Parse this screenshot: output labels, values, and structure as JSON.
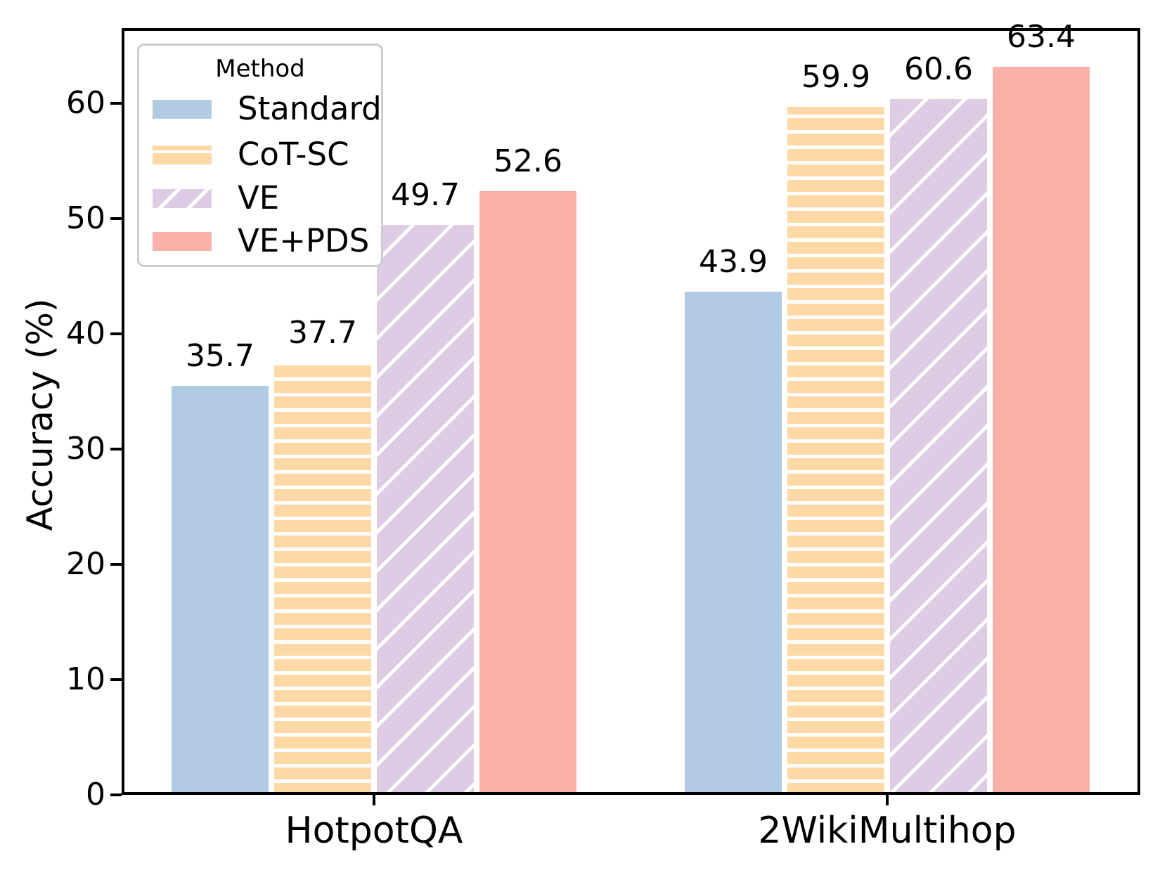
{
  "chart_data": {
    "type": "bar",
    "title": "",
    "xlabel": "",
    "ylabel": "Accuracy (%)",
    "categories": [
      "HotpotQA",
      "2WikiMultihop"
    ],
    "series": [
      {
        "name": "Standard",
        "values": [
          35.7,
          43.9
        ],
        "color": "#b0cbe2",
        "hatch": "backslash"
      },
      {
        "name": "CoT-SC",
        "values": [
          37.7,
          59.9
        ],
        "color": "#fed9a6",
        "hatch": "horiz"
      },
      {
        "name": "VE",
        "values": [
          49.7,
          60.6
        ],
        "color": "#decbe4",
        "hatch": "slash"
      },
      {
        "name": "VE+PDS",
        "values": [
          52.6,
          63.4
        ],
        "color": "#fab1aa",
        "hatch": "none"
      }
    ],
    "bar_value_labels": [
      [
        "35.7",
        "37.7",
        "49.7",
        "52.6"
      ],
      [
        "43.9",
        "59.9",
        "60.6",
        "63.4"
      ]
    ],
    "yticks": [
      0,
      10,
      20,
      30,
      40,
      50,
      60
    ],
    "ylim": [
      0,
      66.5
    ],
    "grid": false,
    "legend": {
      "title": "Method",
      "entries": [
        "Standard",
        "CoT-SC",
        "VE",
        "VE+PDS"
      ],
      "position": "upper left"
    },
    "hatch_line_color": "#ffffff",
    "axis_color": "#000000"
  }
}
